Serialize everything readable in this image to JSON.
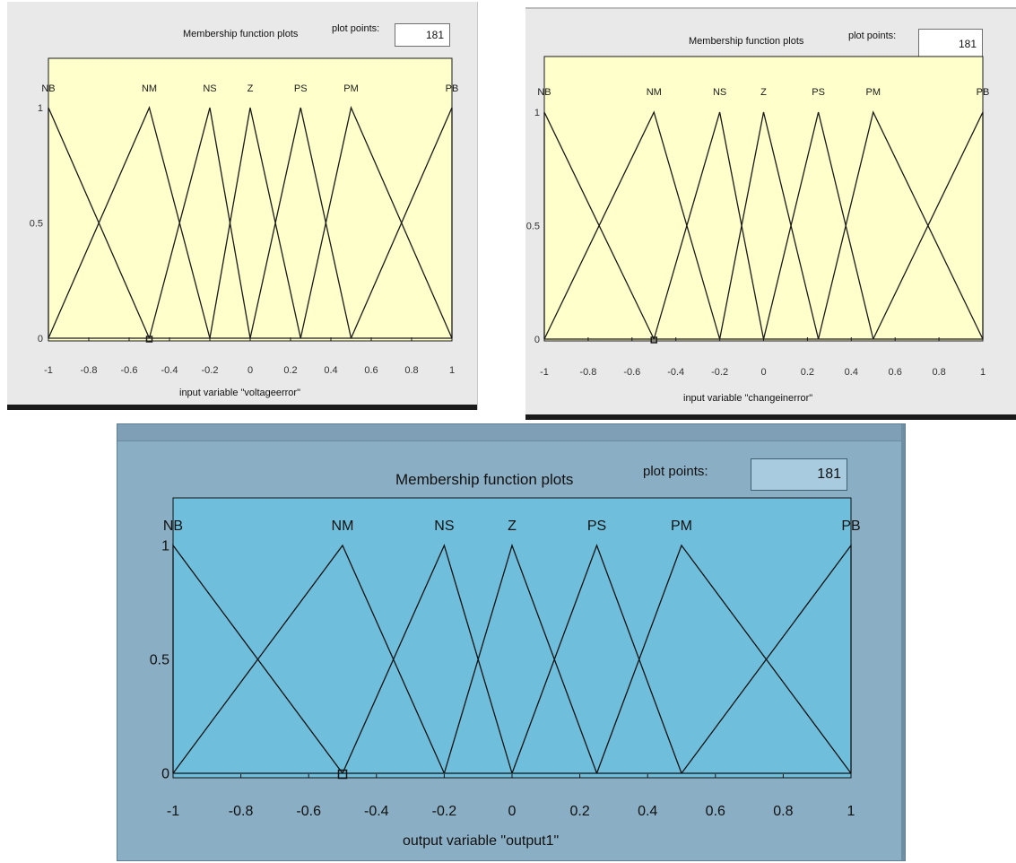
{
  "plots": [
    {
      "header": "Membership function plots",
      "plot_points_label": "plot points:",
      "plot_points_value": "181",
      "xlabel": "input variable \"voltageerror\"",
      "theme": {
        "background": "#e9e9e9",
        "axes_bg": "#ffffcc",
        "line": "#1a1a1a",
        "text": "#333333"
      }
    },
    {
      "header": "Membership function plots",
      "plot_points_label": "plot points:",
      "plot_points_value": "181",
      "xlabel": "input variable \"changeinerror\"",
      "theme": {
        "background": "#e9e9e9",
        "axes_bg": "#ffffcc",
        "line": "#1a1a1a",
        "text": "#333333"
      }
    },
    {
      "header": "Membership function plots",
      "plot_points_label": "plot points:",
      "plot_points_value": "181",
      "xlabel": "output variable \"output1\"",
      "theme": {
        "background": "#8aaec4",
        "axes_bg": "#6fbfdc",
        "line": "#111111",
        "text": "#111111"
      }
    }
  ],
  "chart_data": [
    {
      "type": "line",
      "xlabel": "input variable \"voltageerror\"",
      "xlim": [
        -1,
        1
      ],
      "ylim": [
        0,
        1
      ],
      "xticks": [
        "-1",
        "-0.8",
        "-0.6",
        "-0.4",
        "-0.2",
        "0",
        "0.2",
        "0.4",
        "0.6",
        "0.8",
        "1"
      ],
      "yticks": [
        "0",
        "0.5",
        "1"
      ],
      "selected_series": "NM",
      "series": [
        {
          "name": "NB",
          "x": [
            -1,
            -1,
            -0.5
          ],
          "y": [
            0,
            1,
            0
          ]
        },
        {
          "name": "NM",
          "x": [
            -1,
            -0.5,
            -0.2
          ],
          "y": [
            0,
            1,
            0
          ]
        },
        {
          "name": "NS",
          "x": [
            -0.5,
            -0.2,
            0
          ],
          "y": [
            0,
            1,
            0
          ]
        },
        {
          "name": "Z",
          "x": [
            -0.2,
            0,
            0.25
          ],
          "y": [
            0,
            1,
            0
          ]
        },
        {
          "name": "PS",
          "x": [
            0,
            0.25,
            0.5
          ],
          "y": [
            0,
            1,
            0
          ]
        },
        {
          "name": "PM",
          "x": [
            0.25,
            0.5,
            1
          ],
          "y": [
            0,
            1,
            0
          ]
        },
        {
          "name": "PB",
          "x": [
            0.5,
            1,
            1
          ],
          "y": [
            0,
            1,
            0
          ]
        }
      ]
    },
    {
      "type": "line",
      "xlabel": "input variable \"changeinerror\"",
      "xlim": [
        -1,
        1
      ],
      "ylim": [
        0,
        1
      ],
      "xticks": [
        "-1",
        "-0.8",
        "-0.6",
        "-0.4",
        "-0.2",
        "0",
        "0.2",
        "0.4",
        "0.6",
        "0.8",
        "1"
      ],
      "yticks": [
        "0",
        "0.5",
        "1"
      ],
      "selected_series": "NM",
      "series": [
        {
          "name": "NB",
          "x": [
            -1,
            -1,
            -0.5
          ],
          "y": [
            0,
            1,
            0
          ]
        },
        {
          "name": "NM",
          "x": [
            -1,
            -0.5,
            -0.2
          ],
          "y": [
            0,
            1,
            0
          ]
        },
        {
          "name": "NS",
          "x": [
            -0.5,
            -0.2,
            0
          ],
          "y": [
            0,
            1,
            0
          ]
        },
        {
          "name": "Z",
          "x": [
            -0.2,
            0,
            0.25
          ],
          "y": [
            0,
            1,
            0
          ]
        },
        {
          "name": "PS",
          "x": [
            0,
            0.25,
            0.5
          ],
          "y": [
            0,
            1,
            0
          ]
        },
        {
          "name": "PM",
          "x": [
            0.25,
            0.5,
            1
          ],
          "y": [
            0,
            1,
            0
          ]
        },
        {
          "name": "PB",
          "x": [
            0.5,
            1,
            1
          ],
          "y": [
            0,
            1,
            0
          ]
        }
      ]
    },
    {
      "type": "line",
      "xlabel": "output variable \"output1\"",
      "xlim": [
        -1,
        1
      ],
      "ylim": [
        0,
        1
      ],
      "xticks": [
        "-1",
        "-0.8",
        "-0.6",
        "-0.4",
        "-0.2",
        "0",
        "0.2",
        "0.4",
        "0.6",
        "0.8",
        "1"
      ],
      "yticks": [
        "0",
        "0.5",
        "1"
      ],
      "selected_series": "NM",
      "series": [
        {
          "name": "NB",
          "x": [
            -1,
            -1,
            -0.5
          ],
          "y": [
            0,
            1,
            0
          ]
        },
        {
          "name": "NM",
          "x": [
            -1,
            -0.5,
            -0.2
          ],
          "y": [
            0,
            1,
            0
          ]
        },
        {
          "name": "NS",
          "x": [
            -0.5,
            -0.2,
            0
          ],
          "y": [
            0,
            1,
            0
          ]
        },
        {
          "name": "Z",
          "x": [
            -0.2,
            0,
            0.25
          ],
          "y": [
            0,
            1,
            0
          ]
        },
        {
          "name": "PS",
          "x": [
            0,
            0.25,
            0.5
          ],
          "y": [
            0,
            1,
            0
          ]
        },
        {
          "name": "PM",
          "x": [
            0.25,
            0.5,
            1
          ],
          "y": [
            0,
            1,
            0
          ]
        },
        {
          "name": "PB",
          "x": [
            0.5,
            1,
            1
          ],
          "y": [
            0,
            1,
            0
          ]
        }
      ]
    }
  ]
}
